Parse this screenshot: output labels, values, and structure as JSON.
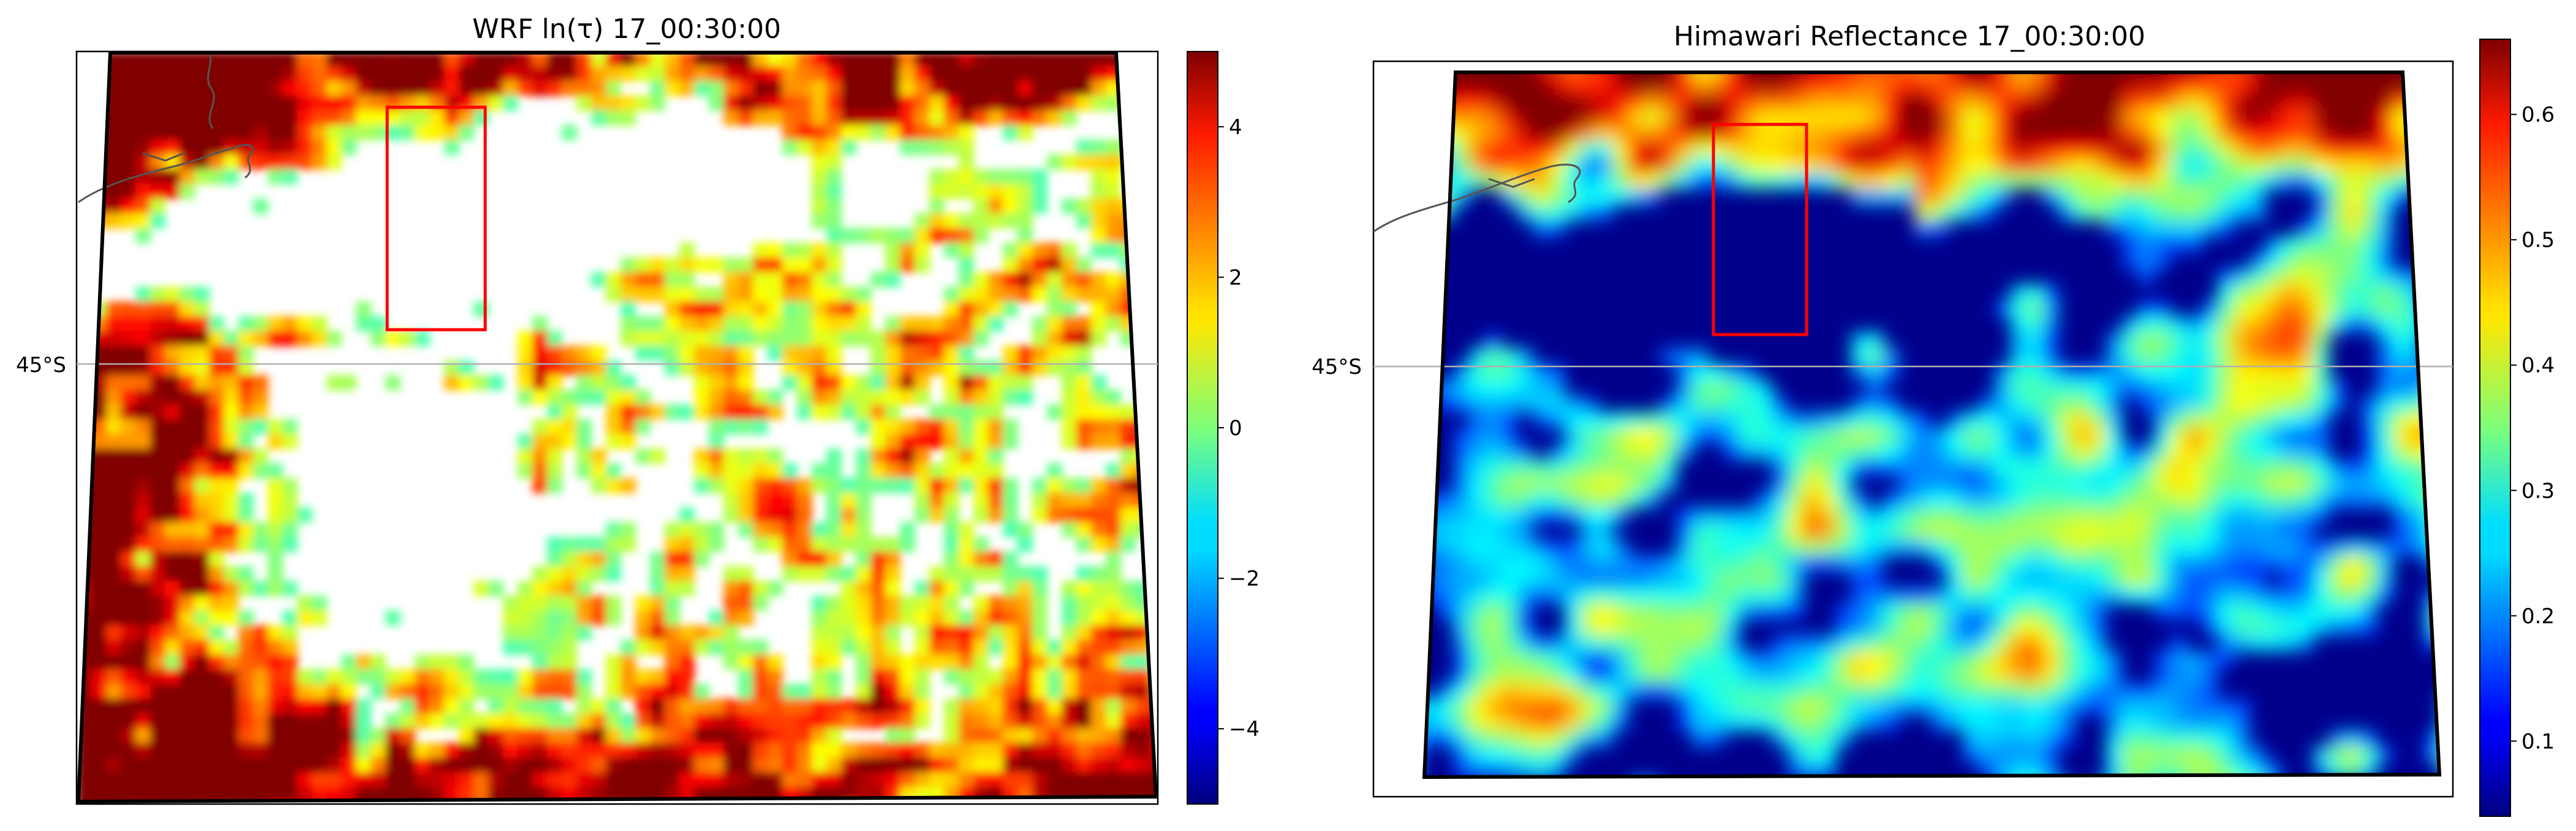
{
  "chart_data": [
    {
      "type": "heatmap",
      "title": "WRF ln(τ) 17_00:30:00",
      "map": {
        "latitude_gridline_label": "45°S",
        "bounding_box_color": "#000000",
        "region_of_interest_color": "#ff0000",
        "coastline_color": "#555555",
        "no_data_color": "#ffffff"
      },
      "colorbar": {
        "colormap": "jet",
        "vmin": -5,
        "vmax": 5,
        "ticks": [
          -4,
          -2,
          0,
          2,
          4
        ],
        "tick_labels": [
          "−4",
          "−2",
          "0",
          "2",
          "4"
        ]
      }
    },
    {
      "type": "heatmap",
      "title": "Himawari Reflectance 17_00:30:00",
      "map": {
        "latitude_gridline_label": "45°S",
        "bounding_box_color": "#000000",
        "region_of_interest_color": "#ff0000",
        "coastline_color": "#555555",
        "no_data_color": "#ffffff"
      },
      "colorbar": {
        "colormap": "jet",
        "vmin": 0.04,
        "vmax": 0.66,
        "ticks": [
          0.1,
          0.2,
          0.3,
          0.4,
          0.5,
          0.6
        ],
        "tick_labels": [
          "0.1",
          "0.2",
          "0.3",
          "0.4",
          "0.5",
          "0.6"
        ]
      }
    }
  ]
}
